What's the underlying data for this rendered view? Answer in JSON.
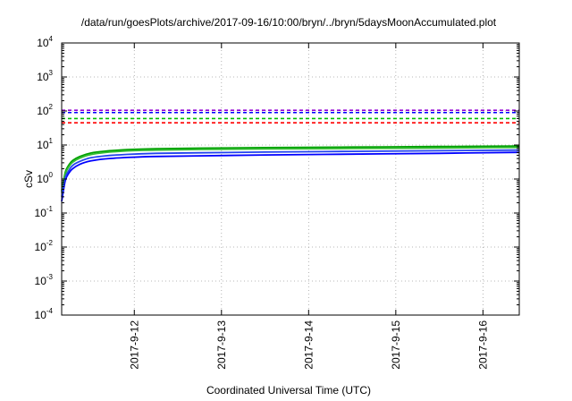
{
  "chart_data": {
    "type": "line",
    "title": "/data/run/goesPlots/archive/2017-09-16/10:00/bryn/../bryn/5daysMoonAccumulated.plot",
    "xlabel": "Coordinated Universal Time (UTC)",
    "ylabel": "cSv",
    "x_scale": "time",
    "xlim": [
      "2017-09-11 04:00",
      "2017-09-16 10:00"
    ],
    "x_ticks": [
      "2017-9-12",
      "2017-9-13",
      "2017-9-14",
      "2017-9-15",
      "2017-9-16"
    ],
    "y_scale": "log",
    "ylim": [
      0.0001,
      10000
    ],
    "y_ticks": [
      {
        "base": "10",
        "exp": "-4",
        "value": 0.0001
      },
      {
        "base": "10",
        "exp": "-3",
        "value": 0.001
      },
      {
        "base": "10",
        "exp": "-2",
        "value": 0.01
      },
      {
        "base": "10",
        "exp": "-1",
        "value": 0.1
      },
      {
        "base": "10",
        "exp": "0",
        "value": 1
      },
      {
        "base": "10",
        "exp": "1",
        "value": 10
      },
      {
        "base": "10",
        "exp": "2",
        "value": 100
      },
      {
        "base": "10",
        "exp": "3",
        "value": 1000
      },
      {
        "base": "10",
        "exp": "4",
        "value": 10000
      }
    ],
    "grid": true,
    "legend": "none",
    "threshold_lines": [
      {
        "value": 45,
        "color": "#ff0000",
        "style": "dashed"
      },
      {
        "value": 60,
        "color": "#00c000",
        "style": "dashed"
      },
      {
        "value": 90,
        "color": "#0000ff",
        "style": "dashed"
      },
      {
        "value": 105,
        "color": "#9400d3",
        "style": "dashed"
      }
    ],
    "series": [
      {
        "color": "#00a000",
        "x": [
          "2017-09-11 04:00",
          "2017-09-11 05:00",
          "2017-09-11 06:00",
          "2017-09-11 07:00",
          "2017-09-11 09:00",
          "2017-09-11 12:00",
          "2017-09-11 16:00",
          "2017-09-11 22:00",
          "2017-09-12 06:00",
          "2017-09-12 18:00",
          "2017-09-13 12:00",
          "2017-09-14 12:00",
          "2017-09-15 12:00",
          "2017-09-16 10:00"
        ],
        "values": [
          0.45,
          1.6,
          2.6,
          3.5,
          4.6,
          5.8,
          6.6,
          7.3,
          7.8,
          8.1,
          8.4,
          8.7,
          9.0,
          9.3
        ]
      },
      {
        "color": "#33bb33",
        "x": [
          "2017-09-11 04:00",
          "2017-09-11 05:00",
          "2017-09-11 06:00",
          "2017-09-11 07:00",
          "2017-09-11 09:00",
          "2017-09-11 12:00",
          "2017-09-11 16:00",
          "2017-09-11 22:00",
          "2017-09-12 06:00",
          "2017-09-12 18:00",
          "2017-09-13 12:00",
          "2017-09-14 12:00",
          "2017-09-15 12:00",
          "2017-09-16 10:00"
        ],
        "values": [
          0.4,
          1.4,
          2.3,
          3.1,
          4.1,
          5.2,
          6.0,
          6.7,
          7.1,
          7.4,
          7.7,
          7.9,
          8.2,
          8.5
        ]
      },
      {
        "color": "#0000ff",
        "x": [
          "2017-09-11 04:00",
          "2017-09-11 05:00",
          "2017-09-11 06:00",
          "2017-09-11 07:00",
          "2017-09-11 09:00",
          "2017-09-11 12:00",
          "2017-09-11 16:00",
          "2017-09-11 22:00",
          "2017-09-12 06:00",
          "2017-09-12 18:00",
          "2017-09-13 12:00",
          "2017-09-14 12:00",
          "2017-09-15 12:00",
          "2017-09-16 10:00"
        ],
        "values": [
          0.22,
          0.9,
          1.5,
          2.0,
          2.7,
          3.4,
          3.9,
          4.3,
          4.6,
          4.8,
          5.1,
          5.4,
          5.7,
          6.1
        ]
      },
      {
        "color": "#2244ee",
        "x": [
          "2017-09-11 04:00",
          "2017-09-11 05:00",
          "2017-09-11 06:00",
          "2017-09-11 07:00",
          "2017-09-11 09:00",
          "2017-09-11 12:00",
          "2017-09-11 16:00",
          "2017-09-11 22:00",
          "2017-09-12 06:00",
          "2017-09-12 18:00",
          "2017-09-13 12:00",
          "2017-09-14 12:00",
          "2017-09-15 12:00",
          "2017-09-16 10:00"
        ],
        "values": [
          0.3,
          1.1,
          1.8,
          2.5,
          3.3,
          4.2,
          4.8,
          5.3,
          5.7,
          5.9,
          6.2,
          6.5,
          6.8,
          7.1
        ]
      }
    ]
  }
}
